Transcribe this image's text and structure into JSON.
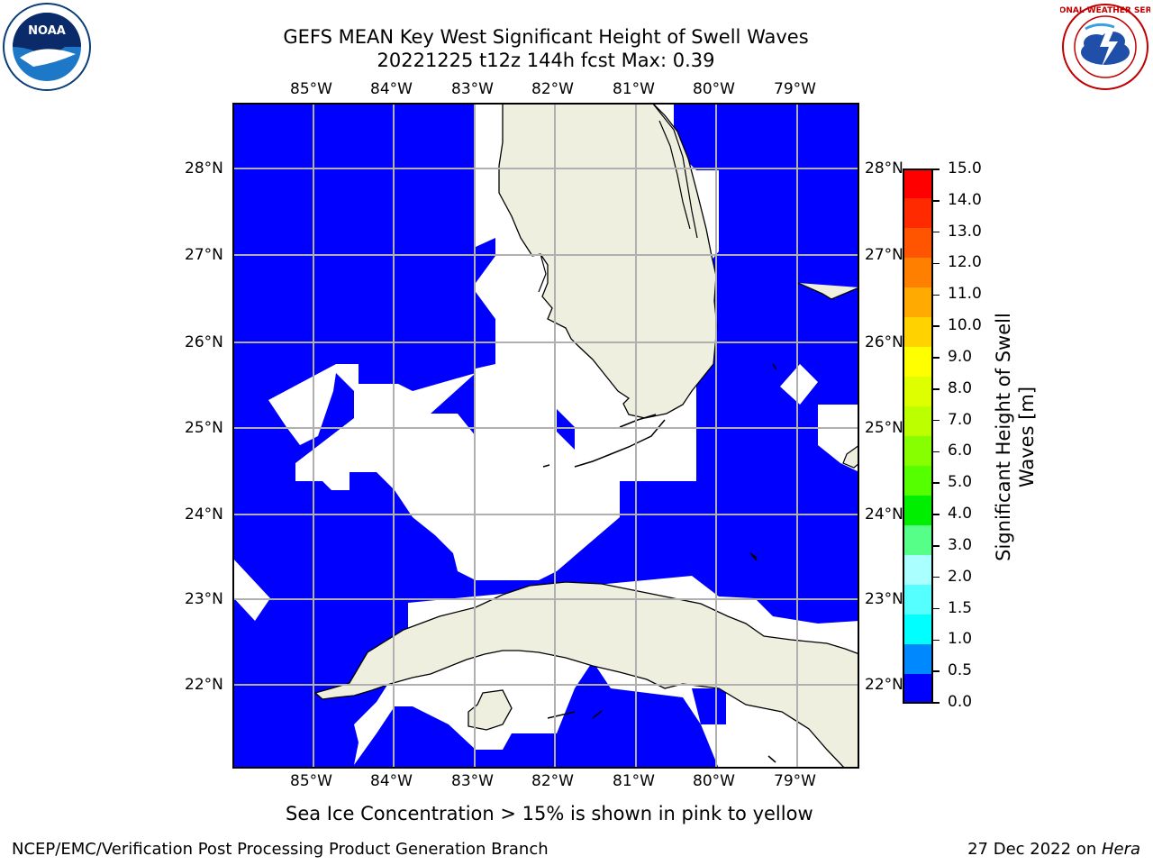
{
  "title": {
    "line1": "GEFS MEAN Key West Significant Height of Swell Waves",
    "line2": "20221225 t12z 144h fcst   Max: 0.39"
  },
  "map": {
    "lon_labels": [
      "85°W",
      "84°W",
      "83°W",
      "82°W",
      "81°W",
      "80°W",
      "79°W"
    ],
    "lat_labels": [
      "28°N",
      "27°N",
      "26°N",
      "25°N",
      "24°N",
      "23°N",
      "22°N"
    ],
    "ocean_color": "#0000ff",
    "land_color": "#efefdf",
    "masked_color": "#ffffff",
    "grid_color": "#b0b0b0"
  },
  "colorbar": {
    "title_line1": "Significant Height of Swell",
    "title_line2": "Waves [m]",
    "ticks": [
      "15.0",
      "14.0",
      "13.0",
      "12.0",
      "11.0",
      "10.0",
      "9.0",
      "8.0",
      "7.0",
      "6.0",
      "5.0",
      "4.0",
      "3.0",
      "2.0",
      "1.5",
      "1.0",
      "0.5",
      "0.0"
    ],
    "colors": [
      "#ff0000",
      "#ff2a00",
      "#ff5500",
      "#ff8000",
      "#ffaa00",
      "#ffd200",
      "#ffff00",
      "#ddff00",
      "#bbff00",
      "#88ff00",
      "#55ff00",
      "#00ee00",
      "#55ff88",
      "#aaffff",
      "#55ffff",
      "#00ffff",
      "#0088ff",
      "#0000ff"
    ]
  },
  "note": "Sea Ice Concentration > 15% is shown in pink to yellow",
  "footer": {
    "left": "NCEP/EMC/Verification Post Processing Product Generation Branch",
    "date": "27 Dec 2022 on ",
    "host": "Hera"
  },
  "logos": {
    "left": "NOAA",
    "right": "NATIONAL WEATHER SERVICE"
  }
}
